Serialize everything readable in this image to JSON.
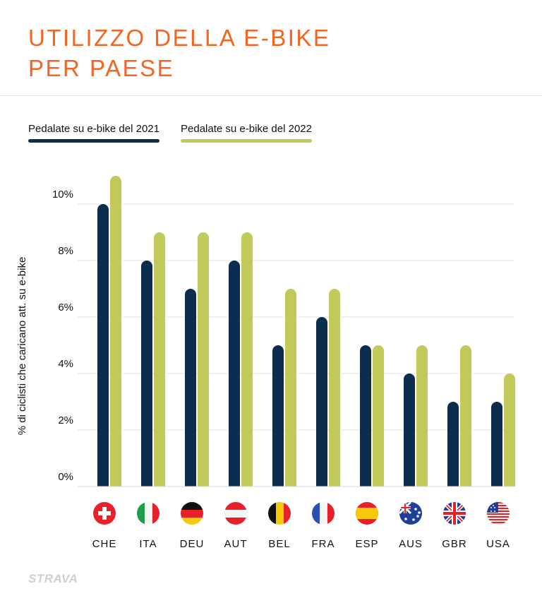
{
  "title_lines": [
    "UTILIZZO DELLA E-BIKE",
    "PER PAESE"
  ],
  "logo": "STRAVA",
  "colors": {
    "title": "#f26522",
    "series_2021": "#0b2d4e",
    "series_2022": "#c2ca5b"
  },
  "chart_data": {
    "type": "bar",
    "title": "UTILIZZO DELLA E-BIKE PER PAESE",
    "ylabel": "% di ciclisti che caricano att. su e-bike",
    "xlabel": "",
    "categories": [
      "CHE",
      "ITA",
      "DEU",
      "AUT",
      "BEL",
      "FRA",
      "ESP",
      "AUS",
      "GBR",
      "USA"
    ],
    "series": [
      {
        "name": "Pedalate su e-bike del 2021",
        "values": [
          10,
          8,
          7,
          8,
          5,
          6,
          5,
          4,
          3,
          3
        ]
      },
      {
        "name": "Pedalate su e-bike del 2022",
        "values": [
          11,
          9,
          9,
          9,
          7,
          7,
          5,
          5,
          5,
          4
        ]
      }
    ],
    "yticks": [
      "0%",
      "2%",
      "4%",
      "6%",
      "8%",
      "10%"
    ],
    "ylim": [
      0,
      12
    ],
    "grid": true,
    "legend": "top-left",
    "flag_icons": [
      "switzerland-flag-icon",
      "italy-flag-icon",
      "germany-flag-icon",
      "austria-flag-icon",
      "belgium-flag-icon",
      "france-flag-icon",
      "spain-flag-icon",
      "australia-flag-icon",
      "uk-flag-icon",
      "usa-flag-icon"
    ]
  }
}
